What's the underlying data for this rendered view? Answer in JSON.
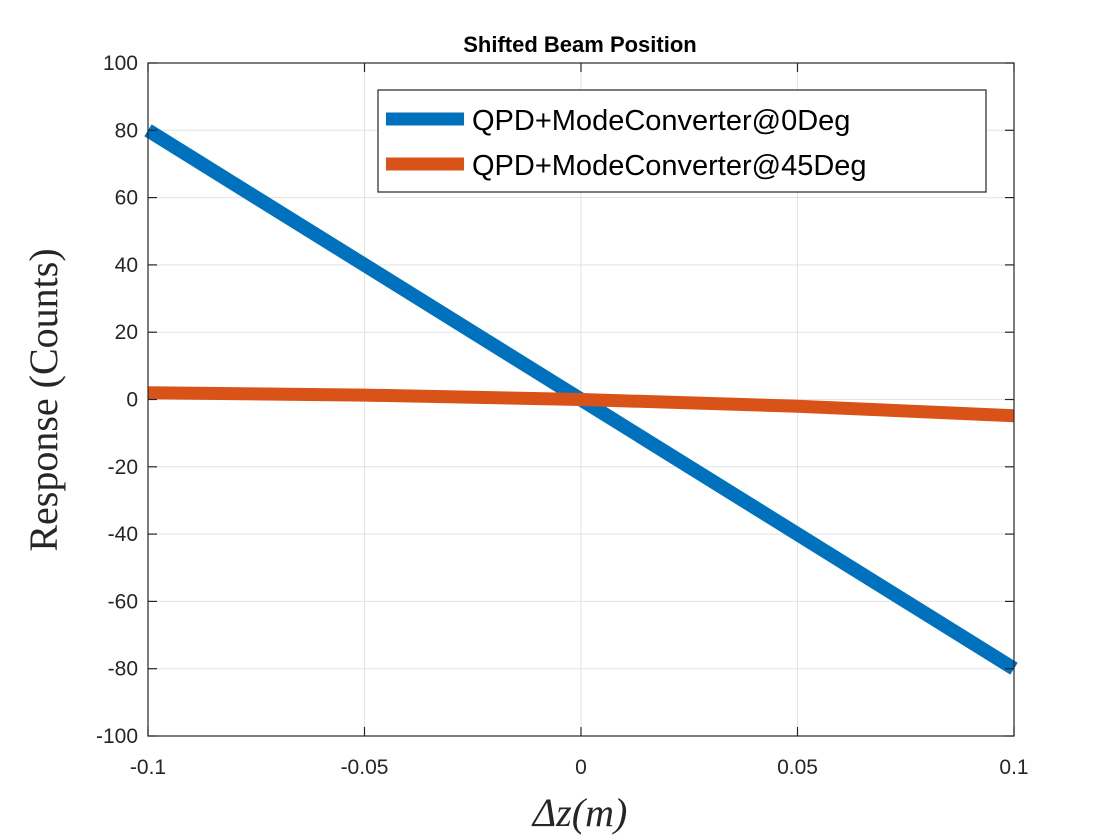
{
  "chart_data": {
    "type": "line",
    "title": "Shifted Beam Position",
    "xlabel": "Δz(m)",
    "ylabel": "Response (Counts)",
    "xlim": [
      -0.1,
      0.1
    ],
    "ylim": [
      -100,
      100
    ],
    "xticks": [
      -0.1,
      -0.05,
      0,
      0.05,
      0.1
    ],
    "xtick_labels": [
      "-0.1",
      "-0.05",
      "0",
      "0.05",
      "0.1"
    ],
    "yticks": [
      -100,
      -80,
      -60,
      -40,
      -20,
      0,
      20,
      40,
      60,
      80,
      100
    ],
    "ytick_labels": [
      "-100",
      "-80",
      "-60",
      "-40",
      "-20",
      "0",
      "20",
      "40",
      "60",
      "80",
      "100"
    ],
    "grid": true,
    "legend_position": "top-right",
    "series": [
      {
        "name": "QPD+ModeConverter@0Deg",
        "color": "#0072BD",
        "x": [
          -0.1,
          0,
          0.1
        ],
        "y": [
          80,
          0,
          -80
        ]
      },
      {
        "name": "QPD+ModeConverter@45Deg",
        "color": "#D95319",
        "x": [
          -0.1,
          -0.05,
          0,
          0.05,
          0.1
        ],
        "y": [
          2,
          1.3,
          0,
          -2,
          -4.8
        ]
      }
    ]
  }
}
